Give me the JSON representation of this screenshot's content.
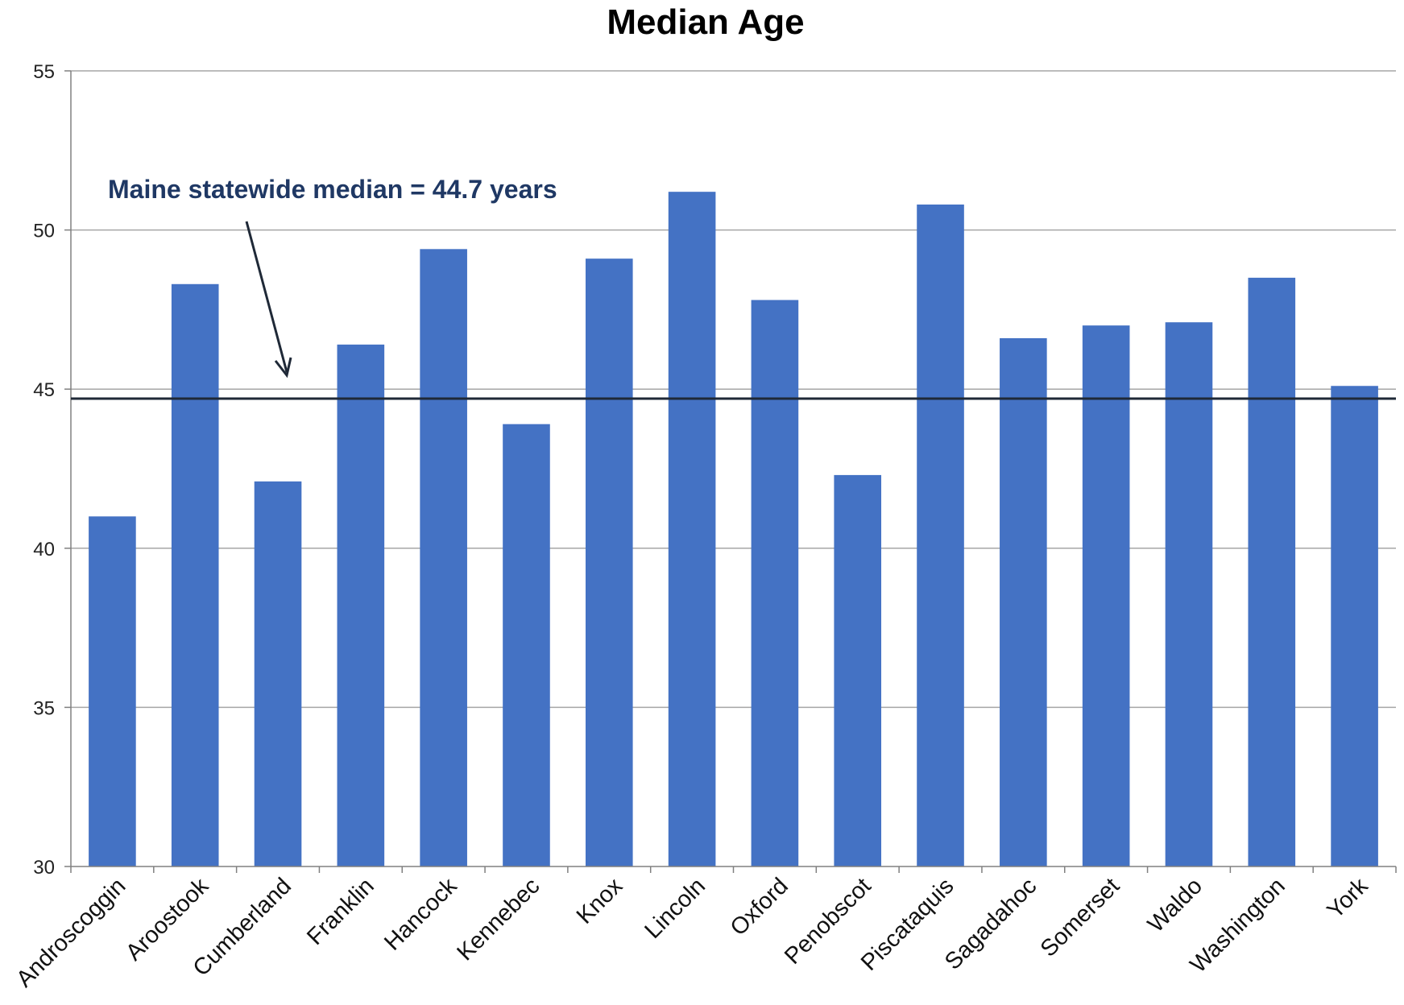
{
  "chart_data": {
    "type": "bar",
    "title": "Median Age",
    "xlabel": "",
    "ylabel": "",
    "ylim": [
      30,
      55
    ],
    "yticks": [
      30,
      35,
      40,
      45,
      50,
      55
    ],
    "grid": true,
    "legend": "none",
    "categories": [
      "Androscoggin",
      "Aroostook",
      "Cumberland",
      "Franklin",
      "Hancock",
      "Kennebec",
      "Knox",
      "Lincoln",
      "Oxford",
      "Penobscot",
      "Piscataquis",
      "Sagadahoc",
      "Somerset",
      "Waldo",
      "Washington",
      "York"
    ],
    "values": [
      41.0,
      48.3,
      42.1,
      46.4,
      49.4,
      43.9,
      49.1,
      51.2,
      47.8,
      42.3,
      50.8,
      46.6,
      47.0,
      47.1,
      48.5,
      45.1
    ],
    "reference_line": {
      "value": 44.7,
      "label": "Maine statewide median = 44.7 years"
    },
    "colors": {
      "bar": "#4472C4",
      "reference_line": "#1F2937",
      "annotation": "#1F3864",
      "grid": "#A6A6A6"
    }
  }
}
